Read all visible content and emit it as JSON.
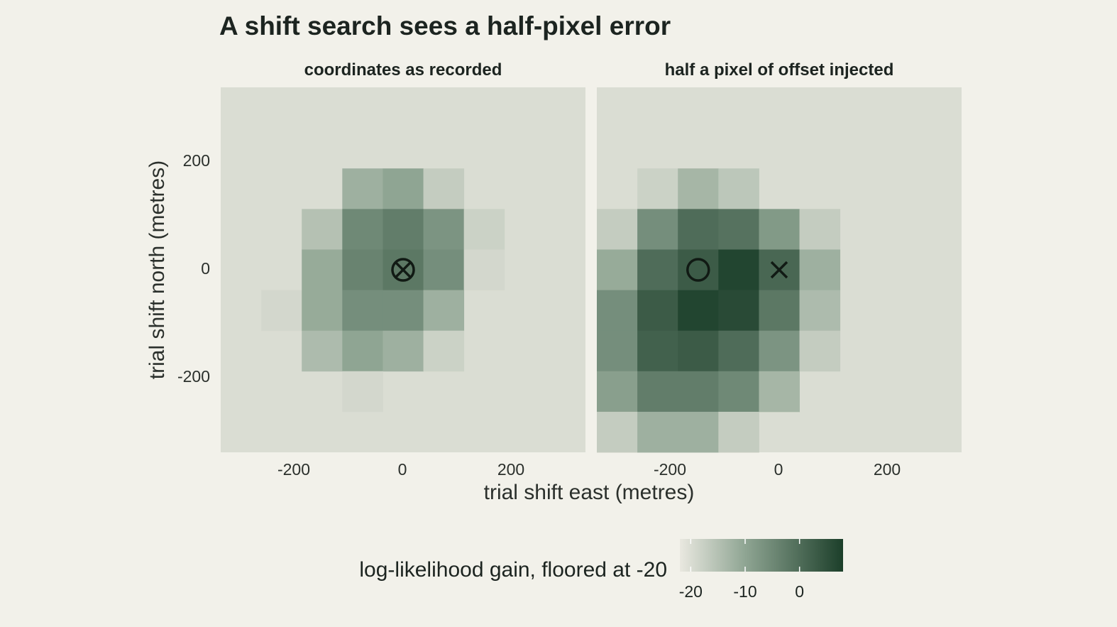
{
  "chart_data": {
    "type": "heatmap",
    "title": "A shift search sees a half-pixel error",
    "xlabel": "trial shift east (metres)",
    "ylabel": "trial shift north (metres)",
    "xlim": [
      -337.5,
      337.5
    ],
    "ylim": [
      -337.5,
      337.5
    ],
    "cell_size": 75,
    "x_ticks": [
      -200,
      0,
      200
    ],
    "x_tick_labels": [
      "-200",
      "0",
      "200"
    ],
    "y_ticks": [
      200,
      0,
      -200
    ],
    "y_tick_labels": [
      "200",
      "0",
      "-200"
    ],
    "colorbar": {
      "title": "log-likelihood gain, floored at -20",
      "min": -22,
      "max": 8,
      "ticks": [
        -20,
        -10,
        0
      ],
      "tick_labels": [
        "-20",
        "-10",
        "0"
      ],
      "colors": [
        "#e9e8e0",
        "#8fa593",
        "#1c3f2a"
      ]
    },
    "background_value": -20,
    "facets": [
      {
        "title": "coordinates as recorded",
        "markers": [
          {
            "symbol": "circle-x",
            "x": 0,
            "y": 0
          }
        ],
        "cells": [
          {
            "x": -75,
            "y": 150,
            "value": -12
          },
          {
            "x": 0,
            "y": 150,
            "value": -10
          },
          {
            "x": 75,
            "y": 150,
            "value": -17
          },
          {
            "x": -150,
            "y": 75,
            "value": -15
          },
          {
            "x": -75,
            "y": 75,
            "value": -5
          },
          {
            "x": 0,
            "y": 75,
            "value": -3
          },
          {
            "x": 75,
            "y": 75,
            "value": -7
          },
          {
            "x": 150,
            "y": 75,
            "value": -18
          },
          {
            "x": -150,
            "y": 0,
            "value": -11
          },
          {
            "x": -75,
            "y": 0,
            "value": -4
          },
          {
            "x": 0,
            "y": 0,
            "value": -2
          },
          {
            "x": 75,
            "y": 0,
            "value": -6
          },
          {
            "x": 150,
            "y": 0,
            "value": -19
          },
          {
            "x": -225,
            "y": -75,
            "value": -19
          },
          {
            "x": -150,
            "y": -75,
            "value": -11
          },
          {
            "x": -75,
            "y": -75,
            "value": -6
          },
          {
            "x": 0,
            "y": -75,
            "value": -6
          },
          {
            "x": 75,
            "y": -75,
            "value": -12
          },
          {
            "x": -150,
            "y": -150,
            "value": -14
          },
          {
            "x": -75,
            "y": -150,
            "value": -10
          },
          {
            "x": 0,
            "y": -150,
            "value": -12
          },
          {
            "x": 75,
            "y": -150,
            "value": -18
          },
          {
            "x": -75,
            "y": -225,
            "value": -19
          }
        ]
      },
      {
        "title": "half a pixel of offset injected",
        "markers": [
          {
            "symbol": "circle",
            "x": -150,
            "y": 0
          },
          {
            "symbol": "x",
            "x": 0,
            "y": 0
          }
        ],
        "cells": [
          {
            "x": -225,
            "y": 150,
            "value": -18
          },
          {
            "x": -150,
            "y": 150,
            "value": -13
          },
          {
            "x": -75,
            "y": 150,
            "value": -16
          },
          {
            "x": -300,
            "y": 75,
            "value": -17
          },
          {
            "x": -225,
            "y": 75,
            "value": -6
          },
          {
            "x": -150,
            "y": 75,
            "value": 0
          },
          {
            "x": -75,
            "y": 75,
            "value": -1
          },
          {
            "x": 0,
            "y": 75,
            "value": -8
          },
          {
            "x": 75,
            "y": 75,
            "value": -17
          },
          {
            "x": -300,
            "y": 0,
            "value": -11
          },
          {
            "x": -225,
            "y": 0,
            "value": 0
          },
          {
            "x": -150,
            "y": 0,
            "value": 3
          },
          {
            "x": -75,
            "y": 0,
            "value": 7
          },
          {
            "x": 0,
            "y": 0,
            "value": 1
          },
          {
            "x": 75,
            "y": 0,
            "value": -12
          },
          {
            "x": -300,
            "y": -75,
            "value": -6
          },
          {
            "x": -225,
            "y": -75,
            "value": 3
          },
          {
            "x": -150,
            "y": -75,
            "value": 7
          },
          {
            "x": -75,
            "y": -75,
            "value": 6
          },
          {
            "x": 0,
            "y": -75,
            "value": -2
          },
          {
            "x": 75,
            "y": -75,
            "value": -14
          },
          {
            "x": -300,
            "y": -150,
            "value": -6
          },
          {
            "x": -225,
            "y": -150,
            "value": 2
          },
          {
            "x": -150,
            "y": -150,
            "value": 3
          },
          {
            "x": -75,
            "y": -150,
            "value": 0
          },
          {
            "x": 0,
            "y": -150,
            "value": -7
          },
          {
            "x": 75,
            "y": -150,
            "value": -17
          },
          {
            "x": -300,
            "y": -225,
            "value": -9
          },
          {
            "x": -225,
            "y": -225,
            "value": -3
          },
          {
            "x": -150,
            "y": -225,
            "value": -3
          },
          {
            "x": -75,
            "y": -225,
            "value": -5
          },
          {
            "x": 0,
            "y": -225,
            "value": -13
          },
          {
            "x": -300,
            "y": -300,
            "value": -17
          },
          {
            "x": -225,
            "y": -300,
            "value": -12
          },
          {
            "x": -150,
            "y": -300,
            "value": -12
          },
          {
            "x": -75,
            "y": -300,
            "value": -17
          }
        ]
      }
    ]
  }
}
